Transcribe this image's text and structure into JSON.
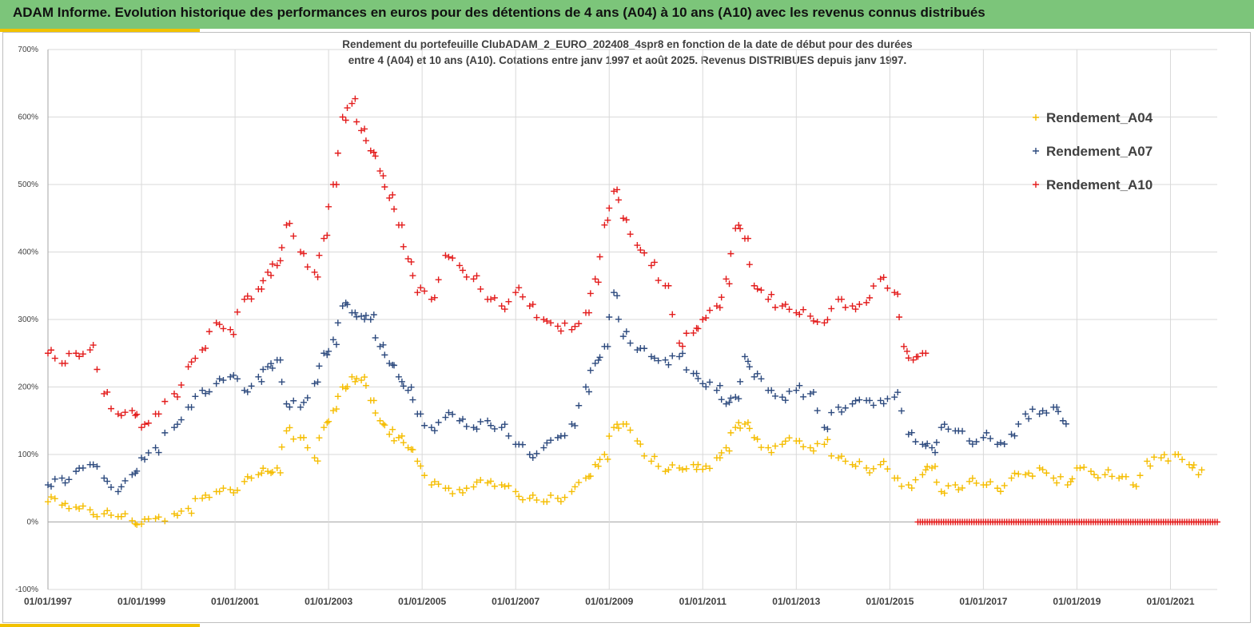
{
  "banner": {
    "title": "ADAM Informe. Evolution historique des performances en euros pour des détentions de 4 ans (A04) à 10 ans (A10) avec les revenus connus distribués"
  },
  "colors": {
    "banner_bg": "#7cc57a",
    "accent": "#f2c200",
    "A04": "#f5bd00",
    "A07": "#2d4a7e",
    "A10": "#e31c1c"
  },
  "chart_data": {
    "type": "scatter",
    "title_line1": "Rendement du portefeuille ClubADAM_2_EURO_202408_4spr8  en fonction de la date de début pour des durées",
    "title_line2": "entre 4 (A04) et 10 ans (A10). Cotations entre janv 1997 et août 2025. Revenus DISTRIBUES depuis janv 1997.",
    "xlabel": "",
    "ylabel": "",
    "xlim": [
      1997.0,
      2022.0
    ],
    "ylim": [
      -100,
      700
    ],
    "y_ticks": [
      -100,
      0,
      100,
      200,
      300,
      400,
      500,
      600,
      700
    ],
    "y_tick_labels": [
      "-100%",
      "0%",
      "100%",
      "200%",
      "300%",
      "400%",
      "500%",
      "600%",
      "700%"
    ],
    "x_ticks": [
      1997,
      1999,
      2001,
      2003,
      2005,
      2007,
      2009,
      2011,
      2013,
      2015,
      2017,
      2019,
      2021
    ],
    "x_tick_labels": [
      "01/01/1997",
      "01/01/1999",
      "01/01/2001",
      "01/01/2003",
      "01/01/2005",
      "01/01/2007",
      "01/01/2009",
      "01/01/2011",
      "01/01/2013",
      "01/01/2015",
      "01/01/2017",
      "01/01/2019",
      "01/01/2021"
    ],
    "grid": "horizontal",
    "legend_position": "top-right",
    "marker": "+",
    "series": [
      {
        "name": "Rendement_A04",
        "color": "#f5bd00",
        "x": [
          1997.0,
          1997.3,
          1997.6,
          1997.9,
          1998.2,
          1998.5,
          1998.8,
          1999.0,
          1999.3,
          1999.7,
          2000.0,
          2000.3,
          2000.6,
          2000.9,
          2001.2,
          2001.5,
          2001.7,
          2001.9,
          2002.1,
          2002.4,
          2002.7,
          2002.9,
          2003.1,
          2003.3,
          2003.5,
          2003.7,
          2003.9,
          2004.1,
          2004.3,
          2004.5,
          2004.7,
          2004.9,
          2005.2,
          2005.5,
          2005.8,
          2006.1,
          2006.4,
          2006.7,
          2007.0,
          2007.3,
          2007.6,
          2007.9,
          2008.2,
          2008.5,
          2008.7,
          2008.9,
          2009.1,
          2009.3,
          2009.6,
          2009.9,
          2010.2,
          2010.5,
          2010.8,
          2011.0,
          2011.3,
          2011.5,
          2011.7,
          2011.9,
          2012.1,
          2012.4,
          2012.7,
          2013.0,
          2013.3,
          2013.6,
          2013.9,
          2014.2,
          2014.5,
          2014.8,
          2015.1,
          2015.4,
          2015.7,
          2015.9,
          2016.1,
          2016.4,
          2016.7,
          2017.0,
          2017.3,
          2017.6,
          2017.9,
          2018.2,
          2018.5,
          2018.8,
          2019.0,
          2019.3,
          2019.6,
          2019.9,
          2020.2,
          2020.5,
          2020.8,
          2021.1,
          2021.4,
          2021.6
        ],
        "y": [
          30,
          25,
          22,
          18,
          12,
          8,
          2,
          -3,
          5,
          12,
          20,
          35,
          45,
          48,
          60,
          70,
          75,
          80,
          135,
          125,
          95,
          140,
          165,
          200,
          215,
          210,
          180,
          150,
          130,
          125,
          110,
          90,
          55,
          50,
          48,
          52,
          58,
          55,
          45,
          35,
          30,
          35,
          45,
          65,
          85,
          100,
          140,
          145,
          120,
          90,
          75,
          80,
          85,
          78,
          95,
          110,
          140,
          145,
          125,
          110,
          115,
          120,
          110,
          115,
          95,
          85,
          80,
          85,
          65,
          55,
          70,
          80,
          45,
          55,
          60,
          55,
          50,
          65,
          70,
          80,
          65,
          55,
          80,
          75,
          70,
          65,
          55,
          90,
          95,
          100,
          85,
          70
        ]
      },
      {
        "name": "Rendement_A07",
        "color": "#2d4a7e",
        "x": [
          1997.0,
          1997.3,
          1997.6,
          1997.9,
          1998.2,
          1998.5,
          1998.8,
          1999.0,
          1999.3,
          1999.7,
          2000.0,
          2000.3,
          2000.6,
          2000.9,
          2001.2,
          2001.5,
          2001.7,
          2001.9,
          2002.1,
          2002.4,
          2002.7,
          2002.9,
          2003.1,
          2003.3,
          2003.5,
          2003.7,
          2003.9,
          2004.1,
          2004.3,
          2004.5,
          2004.7,
          2004.9,
          2005.2,
          2005.5,
          2005.8,
          2006.1,
          2006.4,
          2006.7,
          2007.0,
          2007.3,
          2007.6,
          2007.9,
          2008.2,
          2008.5,
          2008.7,
          2008.9,
          2009.1,
          2009.3,
          2009.6,
          2009.9,
          2010.2,
          2010.5,
          2010.8,
          2011.0,
          2011.3,
          2011.5,
          2011.7,
          2011.9,
          2012.1,
          2012.4,
          2012.7,
          2013.0,
          2013.3,
          2013.6,
          2013.9,
          2014.2,
          2014.5,
          2014.8,
          2015.1,
          2015.4,
          2015.7,
          2015.9,
          2016.1,
          2016.4,
          2016.7,
          2017.0,
          2017.3,
          2017.6,
          2017.9,
          2018.2,
          2018.5,
          2018.7
        ],
        "y": [
          55,
          65,
          75,
          85,
          65,
          45,
          70,
          95,
          110,
          140,
          170,
          195,
          205,
          215,
          195,
          215,
          230,
          240,
          175,
          170,
          205,
          250,
          270,
          320,
          310,
          305,
          300,
          260,
          235,
          215,
          195,
          160,
          140,
          155,
          150,
          140,
          150,
          140,
          115,
          100,
          110,
          125,
          145,
          200,
          235,
          260,
          340,
          275,
          255,
          245,
          240,
          245,
          220,
          205,
          195,
          175,
          185,
          245,
          215,
          195,
          185,
          195,
          190,
          140,
          170,
          175,
          180,
          180,
          185,
          130,
          115,
          110,
          140,
          135,
          120,
          125,
          115,
          130,
          160,
          160,
          170,
          150
        ]
      },
      {
        "name": "Rendement_A10",
        "color": "#e31c1c",
        "x": [
          1997.0,
          1997.3,
          1997.6,
          1997.9,
          1998.2,
          1998.5,
          1998.8,
          1999.0,
          1999.3,
          1999.7,
          2000.0,
          2000.3,
          2000.6,
          2000.9,
          2001.2,
          2001.5,
          2001.7,
          2001.9,
          2002.1,
          2002.4,
          2002.7,
          2002.9,
          2003.1,
          2003.3,
          2003.5,
          2003.7,
          2003.9,
          2004.1,
          2004.3,
          2004.5,
          2004.7,
          2004.9,
          2005.2,
          2005.5,
          2005.8,
          2006.1,
          2006.4,
          2006.7,
          2007.0,
          2007.3,
          2007.6,
          2007.9,
          2008.2,
          2008.5,
          2008.7,
          2008.9,
          2009.1,
          2009.3,
          2009.6,
          2009.9,
          2010.2,
          2010.5,
          2010.8,
          2011.0,
          2011.3,
          2011.5,
          2011.7,
          2011.9,
          2012.1,
          2012.4,
          2012.7,
          2013.0,
          2013.3,
          2013.6,
          2013.9,
          2014.2,
          2014.5,
          2014.8,
          2015.1,
          2015.3,
          2015.5,
          2015.7
        ],
        "y": [
          250,
          235,
          250,
          255,
          190,
          160,
          165,
          140,
          160,
          190,
          230,
          255,
          295,
          285,
          330,
          345,
          370,
          380,
          440,
          400,
          370,
          420,
          500,
          600,
          620,
          580,
          550,
          520,
          480,
          440,
          390,
          340,
          330,
          395,
          380,
          360,
          330,
          320,
          340,
          320,
          300,
          290,
          285,
          310,
          360,
          440,
          490,
          450,
          410,
          380,
          350,
          265,
          280,
          300,
          320,
          360,
          435,
          420,
          350,
          330,
          320,
          310,
          305,
          295,
          330,
          320,
          325,
          360,
          340,
          260,
          240,
          250
        ]
      },
      {
        "name": "",
        "color": "#e31c1c",
        "x_range": [
          2015.6,
          2022.0
        ],
        "y": 0
      }
    ]
  }
}
